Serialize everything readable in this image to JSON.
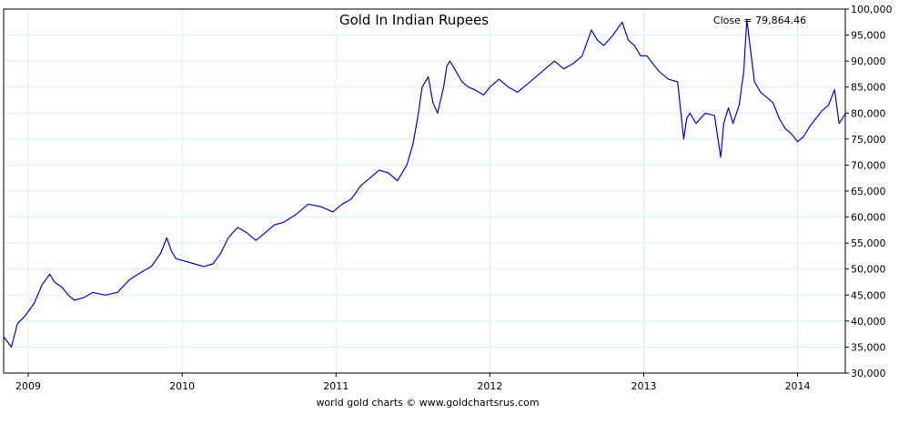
{
  "chart_data": {
    "type": "line",
    "title": "Gold In Indian Rupees",
    "close_label": "Close = 79,864.46",
    "credit": "world gold charts © www.goldchartsrus.com",
    "xlabel": "",
    "ylabel": "",
    "ylim": [
      30000,
      100000
    ],
    "xlim": [
      2008.84,
      2014.31
    ],
    "x_ticks": [
      2009,
      2010,
      2011,
      2012,
      2013,
      2014
    ],
    "x_tick_labels": [
      "2009",
      "2010",
      "2011",
      "2012",
      "2013",
      "2014"
    ],
    "y_ticks": [
      30000,
      35000,
      40000,
      45000,
      50000,
      55000,
      60000,
      65000,
      70000,
      75000,
      80000,
      85000,
      90000,
      95000,
      100000
    ],
    "y_tick_labels": [
      "30,000",
      "35,000",
      "40,000",
      "45,000",
      "50,000",
      "55,000",
      "60,000",
      "65,000",
      "70,000",
      "75,000",
      "80,000",
      "85,000",
      "90,000",
      "95,000",
      "100,000"
    ],
    "grid": true,
    "line_color": "#0000ff",
    "series": [
      {
        "values_x": [
          2008.84,
          2008.89,
          2008.93,
          2008.98,
          2009.04,
          2009.09,
          2009.14,
          2009.17,
          2009.22,
          2009.26,
          2009.3,
          2009.36,
          2009.42,
          2009.5,
          2009.58,
          2009.66,
          2009.74,
          2009.8,
          2009.86,
          2009.9,
          2009.93,
          2009.96,
          2010.02,
          2010.08,
          2010.14,
          2010.2,
          2010.25,
          2010.3,
          2010.36,
          2010.42,
          2010.48,
          2010.56,
          2010.6,
          2010.66,
          2010.74,
          2010.82,
          2010.9,
          2010.98,
          2011.04,
          2011.1,
          2011.16,
          2011.22,
          2011.28,
          2011.34,
          2011.4,
          2011.46,
          2011.5,
          2011.53,
          2011.56,
          2011.6,
          2011.63,
          2011.66,
          2011.7,
          2011.72,
          2011.74,
          2011.78,
          2011.82,
          2011.86,
          2011.9,
          2011.93,
          2011.96,
          2012.0,
          2012.06,
          2012.12,
          2012.18,
          2012.24,
          2012.3,
          2012.36,
          2012.42,
          2012.48,
          2012.54,
          2012.6,
          2012.66,
          2012.7,
          2012.74,
          2012.8,
          2012.86,
          2012.9,
          2012.94,
          2012.98,
          2013.02,
          2013.06,
          2013.1,
          2013.16,
          2013.22,
          2013.26,
          2013.28,
          2013.3,
          2013.34,
          2013.4,
          2013.46,
          2013.5,
          2013.52,
          2013.55,
          2013.58,
          2013.62,
          2013.65,
          2013.67,
          2013.69,
          2013.72,
          2013.76,
          2013.8,
          2013.84,
          2013.88,
          2013.92,
          2013.96,
          2014.0,
          2014.04,
          2014.08,
          2014.12,
          2014.16,
          2014.2,
          2014.24,
          2014.27,
          2014.31
        ],
        "values_y": [
          37000,
          35000,
          39500,
          41000,
          43500,
          47000,
          49000,
          47500,
          46500,
          45000,
          44000,
          44500,
          45500,
          45000,
          45500,
          48000,
          49500,
          50500,
          53000,
          56000,
          53500,
          52000,
          51500,
          51000,
          50500,
          51000,
          53000,
          56000,
          58000,
          57000,
          55500,
          57500,
          58500,
          59000,
          60500,
          62500,
          62000,
          61000,
          62500,
          63500,
          66000,
          67500,
          69000,
          68500,
          67000,
          70000,
          74000,
          79000,
          85000,
          87000,
          82000,
          80000,
          85000,
          89000,
          90000,
          88000,
          86000,
          85000,
          84500,
          84000,
          83500,
          85000,
          86500,
          85000,
          84000,
          85500,
          87000,
          88500,
          90000,
          88500,
          89500,
          91000,
          96000,
          94000,
          93000,
          95000,
          97500,
          94000,
          93000,
          91000,
          91000,
          89500,
          88000,
          86500,
          86000,
          75000,
          79000,
          80000,
          78000,
          80000,
          79500,
          71500,
          78000,
          81000,
          78000,
          81500,
          88000,
          98000,
          93000,
          86000,
          84000,
          83000,
          82000,
          79000,
          77000,
          76000,
          74500,
          75500,
          77500,
          79000,
          80500,
          81500,
          84500,
          78000,
          79864.46
        ]
      }
    ]
  }
}
